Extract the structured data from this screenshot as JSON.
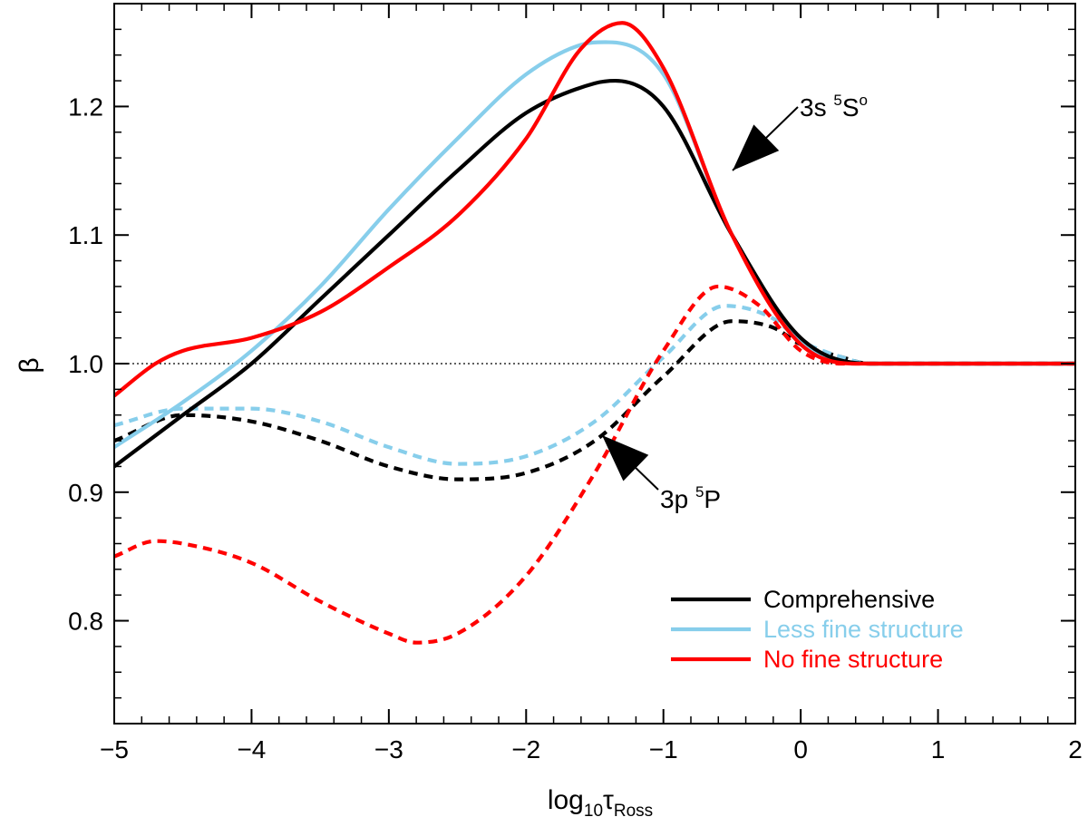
{
  "chart_data": {
    "type": "line",
    "title": "",
    "xlabel": {
      "base": "log",
      "sub1": "10",
      "tau": "τ",
      "sub2": "Ross"
    },
    "ylabel": "β",
    "xlim": [
      -5,
      2
    ],
    "ylim": [
      0.72,
      1.28
    ],
    "xticks": [
      -5,
      -4,
      -3,
      -2,
      -1,
      0,
      1,
      2
    ],
    "xtick_labels": [
      "−5",
      "−4",
      "−3",
      "−2",
      "−1",
      "0",
      "1",
      "2"
    ],
    "yticks": [
      0.8,
      0.9,
      1.0,
      1.1,
      1.2
    ],
    "ytick_labels": [
      "0.8",
      "0.9",
      "1.0",
      "1.1",
      "1.2"
    ],
    "reference_line": 1.0,
    "legend_position": "bottom-right",
    "legend": [
      {
        "label": "Comprehensive",
        "color": "#000000"
      },
      {
        "label": "Less fine structure",
        "color": "#87CEEB"
      },
      {
        "label": "No fine structure",
        "color": "#FF0000"
      }
    ],
    "annotations": [
      {
        "text": "3s",
        "sup": "5",
        "rest": "S",
        "sup2": "o"
      },
      {
        "text": "3p",
        "sup": "5",
        "rest": "P",
        "sup2": ""
      }
    ],
    "series": [
      {
        "name": "Comprehensive 3s 5So",
        "legend": "Comprehensive",
        "line": "solid",
        "color": "#000000",
        "x": [
          -5,
          -4.5,
          -4,
          -3.5,
          -3,
          -2.5,
          -2,
          -1.5,
          -1.35,
          -1,
          -0.5,
          0,
          0.5,
          1,
          1.5,
          2
        ],
        "y": [
          0.92,
          0.96,
          1.0,
          1.05,
          1.1,
          1.15,
          1.195,
          1.218,
          1.22,
          1.2,
          1.1,
          1.02,
          1.0,
          1.0,
          1.0,
          1.0
        ]
      },
      {
        "name": "Less fine structure 3s 5So",
        "legend": "Less fine structure",
        "line": "solid",
        "color": "#87CEEB",
        "x": [
          -5,
          -4.5,
          -4,
          -3.5,
          -3,
          -2.5,
          -2,
          -1.6,
          -1.4,
          -1,
          -0.5,
          0,
          0.5,
          1,
          1.5,
          2
        ],
        "y": [
          0.935,
          0.97,
          1.01,
          1.06,
          1.12,
          1.175,
          1.225,
          1.248,
          1.25,
          1.225,
          1.1,
          1.018,
          1.0,
          1.0,
          1.0,
          1.0
        ]
      },
      {
        "name": "No fine structure 3s 5So",
        "legend": "No fine structure",
        "line": "solid",
        "color": "#FF0000",
        "x": [
          -5,
          -4.7,
          -4.5,
          -4,
          -3.5,
          -3,
          -2.5,
          -2,
          -1.6,
          -1.3,
          -1,
          -0.5,
          0,
          0.5,
          1,
          1.5,
          2
        ],
        "y": [
          0.975,
          1.0,
          1.01,
          1.02,
          1.04,
          1.075,
          1.115,
          1.175,
          1.245,
          1.265,
          1.23,
          1.1,
          1.015,
          1.0,
          1.0,
          1.0,
          1.0
        ]
      },
      {
        "name": "Comprehensive 3p 5P",
        "legend": "Comprehensive",
        "line": "dashed",
        "color": "#000000",
        "x": [
          -5,
          -4.5,
          -4,
          -3.5,
          -3,
          -2.5,
          -2,
          -1.5,
          -1,
          -0.5,
          -0.2,
          0,
          0.3,
          0.5,
          1,
          1.5,
          2
        ],
        "y": [
          0.94,
          0.96,
          0.955,
          0.94,
          0.92,
          0.91,
          0.915,
          0.94,
          0.99,
          1.033,
          1.028,
          1.015,
          1.005,
          1.0,
          1.0,
          1.0,
          1.0
        ]
      },
      {
        "name": "Less fine structure 3p 5P",
        "legend": "Less fine structure",
        "line": "dashed",
        "color": "#87CEEB",
        "x": [
          -5,
          -4.5,
          -4,
          -3.5,
          -3,
          -2.5,
          -2,
          -1.5,
          -1,
          -0.55,
          -0.2,
          0,
          0.3,
          0.5,
          1,
          1.5,
          2
        ],
        "y": [
          0.952,
          0.965,
          0.965,
          0.955,
          0.935,
          0.922,
          0.928,
          0.955,
          1.005,
          1.045,
          1.035,
          1.018,
          1.005,
          1.0,
          1.0,
          1.0,
          1.0
        ]
      },
      {
        "name": "No fine structure 3p 5P",
        "legend": "No fine structure",
        "line": "dashed",
        "color": "#FF0000",
        "x": [
          -5,
          -4.7,
          -4.5,
          -4,
          -3.5,
          -3,
          -2.8,
          -2.5,
          -2,
          -1.5,
          -1,
          -0.6,
          -0.3,
          0,
          0.3,
          0.5,
          1,
          1.5,
          2
        ],
        "y": [
          0.85,
          0.862,
          0.86,
          0.845,
          0.815,
          0.79,
          0.783,
          0.79,
          0.835,
          0.915,
          1.01,
          1.06,
          1.045,
          1.01,
          1.0,
          1.0,
          1.0,
          1.0,
          1.0
        ]
      }
    ]
  }
}
